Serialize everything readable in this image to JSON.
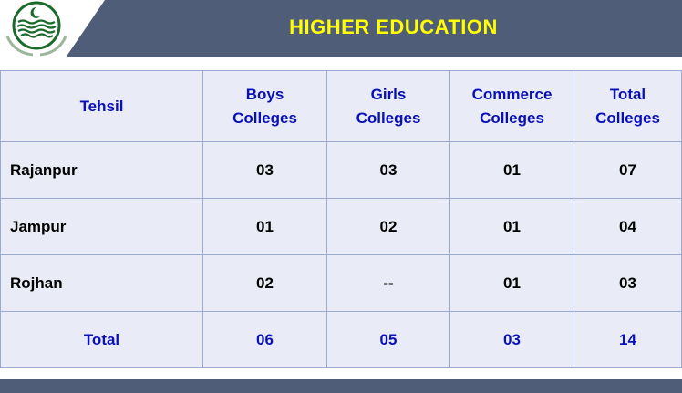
{
  "header": {
    "title": "HIGHER EDUCATION",
    "band_color": "#4f5d78",
    "title_color": "#ffff00",
    "logo": "government-of-punjab-emblem"
  },
  "table": {
    "columns": [
      "Tehsil",
      "Boys Colleges",
      "Girls Colleges",
      "Commerce Colleges",
      "Total Colleges"
    ],
    "rows": [
      [
        "Rajanpur",
        "03",
        "03",
        "01",
        "07"
      ],
      [
        "Jampur",
        "01",
        "02",
        "01",
        "04"
      ],
      [
        "Rojhan",
        "02",
        "--",
        "01",
        "03"
      ]
    ],
    "total": [
      "Total",
      "06",
      "05",
      "03",
      "14"
    ]
  }
}
